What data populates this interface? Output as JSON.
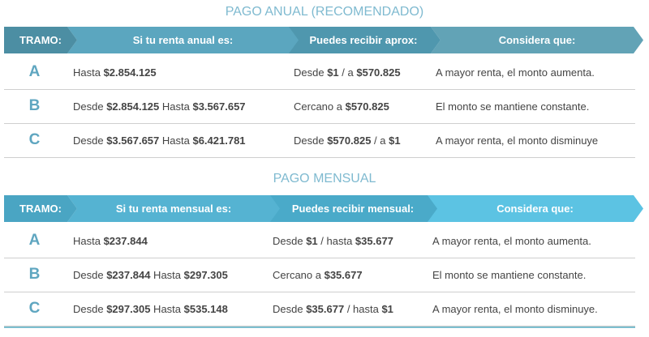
{
  "annual": {
    "title": "PAGO ANUAL (RECOMENDADO)",
    "colors": [
      "#4c8ea3",
      "#5ba6bf",
      "#4f97ae",
      "#62a3b6"
    ],
    "headers": [
      "TRAMO:",
      "Si tu renta anual es:",
      "Puedes recibir aprox:",
      "Considera que:"
    ],
    "rows": [
      {
        "tramo": "A",
        "renta": [
          [
            "Hasta ",
            0
          ],
          [
            "$2.854.125",
            1
          ]
        ],
        "recibir": [
          [
            "Desde ",
            0
          ],
          [
            "$1",
            1
          ],
          [
            " / a ",
            0
          ],
          [
            "$570.825",
            1
          ]
        ],
        "considera": "A mayor renta, el monto aumenta."
      },
      {
        "tramo": "B",
        "renta": [
          [
            "Desde ",
            0
          ],
          [
            "$2.854.125",
            1
          ],
          [
            " Hasta ",
            0
          ],
          [
            "$3.567.657",
            1
          ]
        ],
        "recibir": [
          [
            "Cercano a ",
            0
          ],
          [
            "$570.825",
            1
          ]
        ],
        "considera": "El monto se mantiene constante."
      },
      {
        "tramo": "C",
        "renta": [
          [
            "Desde ",
            0
          ],
          [
            "$3.567.657",
            1
          ],
          [
            " Hasta ",
            0
          ],
          [
            "$6.421.781",
            1
          ]
        ],
        "recibir": [
          [
            "Desde ",
            0
          ],
          [
            "$570.825",
            1
          ],
          [
            " / a ",
            0
          ],
          [
            "$1",
            1
          ]
        ],
        "considera": "A mayor renta, el monto disminuye"
      }
    ]
  },
  "monthly": {
    "title": "PAGO MENSUAL",
    "colors": [
      "#4aa5c3",
      "#55b3d2",
      "#4aaac9",
      "#5cc3e3"
    ],
    "headers": [
      "TRAMO:",
      "Si tu renta mensual es:",
      "Puedes recibir mensual:",
      "Considera que:"
    ],
    "rows": [
      {
        "tramo": "A",
        "renta": [
          [
            "Hasta ",
            0
          ],
          [
            "$237.844",
            1
          ]
        ],
        "recibir": [
          [
            "Desde ",
            0
          ],
          [
            "$1",
            1
          ],
          [
            " / hasta ",
            0
          ],
          [
            "$35.677",
            1
          ]
        ],
        "considera": "A mayor renta, el monto aumenta."
      },
      {
        "tramo": "B",
        "renta": [
          [
            "Desde ",
            0
          ],
          [
            "$237.844",
            1
          ],
          [
            " Hasta ",
            0
          ],
          [
            "$297.305",
            1
          ]
        ],
        "recibir": [
          [
            "Cercano a ",
            0
          ],
          [
            "$35.677",
            1
          ]
        ],
        "considera": "El monto se mantiene constante."
      },
      {
        "tramo": "C",
        "renta": [
          [
            "Desde ",
            0
          ],
          [
            "$297.305",
            1
          ],
          [
            " Hasta ",
            0
          ],
          [
            "$535.148",
            1
          ]
        ],
        "recibir": [
          [
            "Desde ",
            0
          ],
          [
            "$35.677",
            1
          ],
          [
            " / hasta ",
            0
          ],
          [
            "$1",
            1
          ]
        ],
        "considera": "A mayor renta, el monto disminuye."
      }
    ]
  }
}
